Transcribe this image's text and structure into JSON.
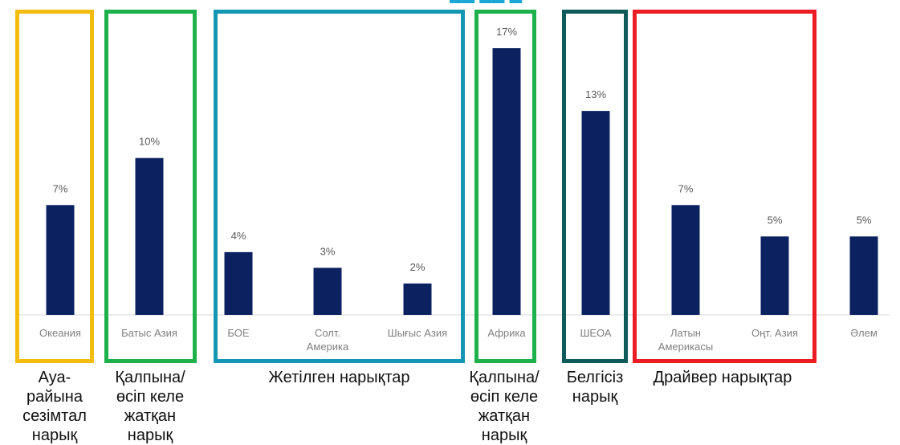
{
  "chart_data": {
    "type": "bar",
    "title": "",
    "xlabel": "",
    "ylabel": "",
    "ylim": [
      0,
      17
    ],
    "grid": false,
    "categories": [
      "Океания",
      "Батыс Азия",
      "БОЕ",
      "Солт. Америка",
      "Шығыс Азия",
      "Африка",
      "ШЕОА",
      "Латын Америкасы",
      "Оңт. Азия",
      "Әлем"
    ],
    "values": [
      7,
      10,
      4,
      3,
      2,
      17,
      13,
      7,
      5,
      5
    ],
    "value_labels": [
      "7%",
      "10%",
      "4%",
      "3%",
      "2%",
      "17%",
      "13%",
      "7%",
      "5%",
      "5%"
    ],
    "bar_color": "#0c2160",
    "groups": [
      {
        "label": "Ауа-райына сезімтал нарық",
        "color": "#f2bd0f"
      },
      {
        "label": "Қалпына/ өсіп келе жатқан нарық",
        "color": "#1db14b"
      },
      {
        "label": "Жетілген нарықтар",
        "color": "#1497b3"
      },
      {
        "label": "Қалпына/ өсіп келе жатқан нарық",
        "color": "#1db14b"
      },
      {
        "label": "Белгісіз нарық",
        "color": "#0f5a5a"
      },
      {
        "label": "Драйвер нарықтар",
        "color": "#ec1c24"
      }
    ]
  }
}
